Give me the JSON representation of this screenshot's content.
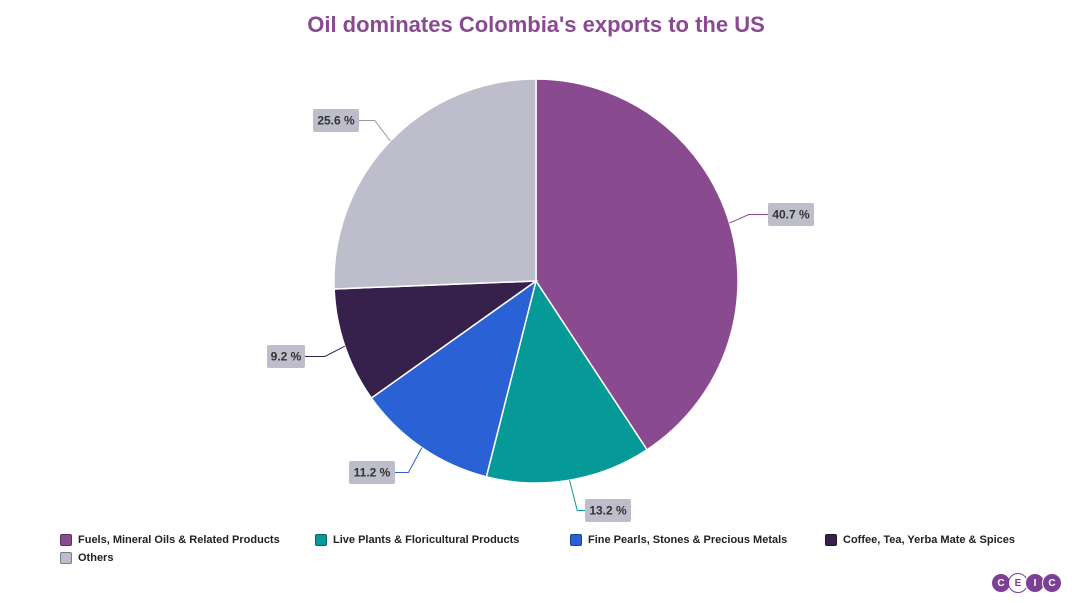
{
  "title": "Oil dominates Colombia's exports to the US",
  "chart_data": {
    "type": "pie",
    "title": "Oil dominates Colombia's exports to the US",
    "slices": [
      {
        "label": "Fuels, Mineral Oils & Related Products",
        "value": 40.7,
        "display": "40.7 %",
        "color": "#8a4a8f",
        "line_color": "#8a4a8f"
      },
      {
        "label": "Live Plants & Floricultural Products",
        "value": 13.2,
        "display": "13.2 %",
        "color": "#059a98",
        "line_color": "#059a98"
      },
      {
        "label": "Fine Pearls, Stones & Precious Metals",
        "value": 11.2,
        "display": "11.2 %",
        "color": "#2a62d6",
        "line_color": "#2a62d6"
      },
      {
        "label": "Coffee, Tea, Yerba Mate & Spices",
        "value": 9.2,
        "display": "9.2 %",
        "color": "#35214b",
        "line_color": "#35214b"
      },
      {
        "label": "Others",
        "value": 25.6,
        "display": "25.6 %",
        "color": "#bdbdcb",
        "line_color": "#999999"
      }
    ],
    "legend_position": "bottom"
  },
  "logo": {
    "letters": [
      "C",
      "E",
      "I",
      "C"
    ]
  }
}
